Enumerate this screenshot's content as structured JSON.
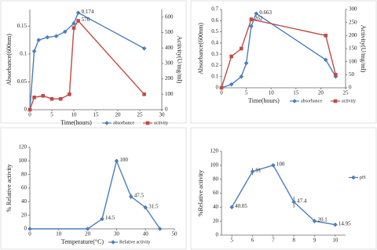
{
  "chart_data": [
    {
      "type": "line",
      "xlabel": "Time(hours)",
      "ylabel": "Absorbance(600nm)",
      "y2label": "Activity(U/mg/ml)",
      "xlim": [
        0,
        30
      ],
      "xticks": [
        0,
        5,
        10,
        15,
        20,
        25,
        30
      ],
      "ylim": [
        0,
        0.18
      ],
      "yticks": [
        0,
        0.05,
        0.1,
        0.15
      ],
      "y2lim": [
        0,
        650
      ],
      "y2ticks": [
        0,
        100,
        200,
        300,
        400,
        500,
        600
      ],
      "legend": "bottom",
      "series": [
        {
          "name": "absorbance",
          "color": "#4a7ebb",
          "marker": "diamond",
          "x": [
            0,
            1,
            2,
            4,
            6,
            8,
            10,
            11,
            26
          ],
          "values": [
            0,
            0.105,
            0.125,
            0.13,
            0.132,
            0.14,
            0.155,
            0.174,
            0.11
          ],
          "value_labels": [
            null,
            null,
            null,
            null,
            null,
            null,
            null,
            "0.174",
            null
          ]
        },
        {
          "name": "activity",
          "color": "#be4b48",
          "marker": "square",
          "axis": "y2",
          "x": [
            0,
            1,
            3,
            5,
            7,
            9,
            10,
            11,
            26
          ],
          "values": [
            0,
            80,
            90,
            70,
            70,
            100,
            530,
            576,
            100
          ],
          "value_labels": [
            null,
            null,
            null,
            null,
            null,
            null,
            null,
            "576",
            null
          ]
        }
      ]
    },
    {
      "type": "line",
      "xlabel": "Time(hours)",
      "ylabel": "Absorbance(600nm)",
      "y2label": "Activity(U/mg/ml)",
      "xlim": [
        0,
        25
      ],
      "xticks": [
        0,
        5,
        10,
        15,
        20,
        25
      ],
      "ylim": [
        0,
        0.7
      ],
      "yticks": [
        0,
        0.1,
        0.2,
        0.3,
        0.4,
        0.5,
        0.6,
        0.7
      ],
      "y2lim": [
        0,
        300
      ],
      "y2ticks": [
        0,
        50,
        100,
        150,
        200,
        250,
        300
      ],
      "legend": "bottom",
      "series": [
        {
          "name": "absorbance",
          "color": "#4a7ebb",
          "marker": "diamond",
          "x": [
            0,
            2,
            4,
            5,
            6,
            7,
            21,
            23
          ],
          "values": [
            0,
            0.03,
            0.1,
            0.22,
            0.55,
            0.663,
            0.25,
            0.1
          ],
          "value_labels": [
            null,
            null,
            null,
            null,
            null,
            "0.663",
            null,
            null
          ]
        },
        {
          "name": "activity",
          "color": "#be4b48",
          "marker": "square",
          "axis": "y2",
          "x": [
            0,
            2,
            4,
            6,
            21,
            23
          ],
          "values": [
            0,
            120,
            150,
            262,
            200,
            50
          ],
          "value_labels": [
            null,
            null,
            null,
            "262",
            null,
            null
          ]
        }
      ]
    },
    {
      "type": "line",
      "xlabel": "Temperature(°C)",
      "ylabel": "% Relative activity",
      "xlim": [
        0,
        50
      ],
      "xticks": [
        0,
        10,
        20,
        30,
        40,
        50
      ],
      "ylim": [
        0,
        120
      ],
      "yticks": [
        0,
        20,
        40,
        60,
        80,
        100,
        120
      ],
      "legend": "bottom",
      "series": [
        {
          "name": "Relative activity",
          "color": "#4a7ebb",
          "marker": "diamond",
          "x": [
            0,
            20,
            25,
            30,
            35,
            40,
            45
          ],
          "values": [
            0,
            0,
            14.5,
            100,
            47.5,
            31.5,
            0
          ],
          "errors": [
            0,
            0,
            3,
            0,
            4,
            3,
            0
          ],
          "value_labels": [
            null,
            null,
            "14.5",
            "100",
            "47.5",
            "31.5",
            null
          ]
        }
      ]
    },
    {
      "type": "line",
      "ylabel": "%Relative activity",
      "xlim": [
        4.5,
        10.5
      ],
      "xticks": [
        5,
        6,
        7,
        8,
        9,
        10
      ],
      "ylim": [
        0,
        120
      ],
      "yticks": [
        0,
        20,
        40,
        60,
        80,
        100,
        120
      ],
      "legend": "right",
      "series": [
        {
          "name": "pH",
          "color": "#4a7ebb",
          "marker": "diamond",
          "x": [
            5,
            6,
            7,
            8,
            9,
            10
          ],
          "values": [
            40.05,
            91,
            100,
            47.4,
            20.1,
            14.95
          ],
          "errors": [
            2,
            5,
            2,
            8,
            3,
            1
          ],
          "value_labels": [
            "40.05",
            "91",
            "100",
            "47.4",
            "20.1",
            "14.95"
          ]
        }
      ]
    }
  ]
}
